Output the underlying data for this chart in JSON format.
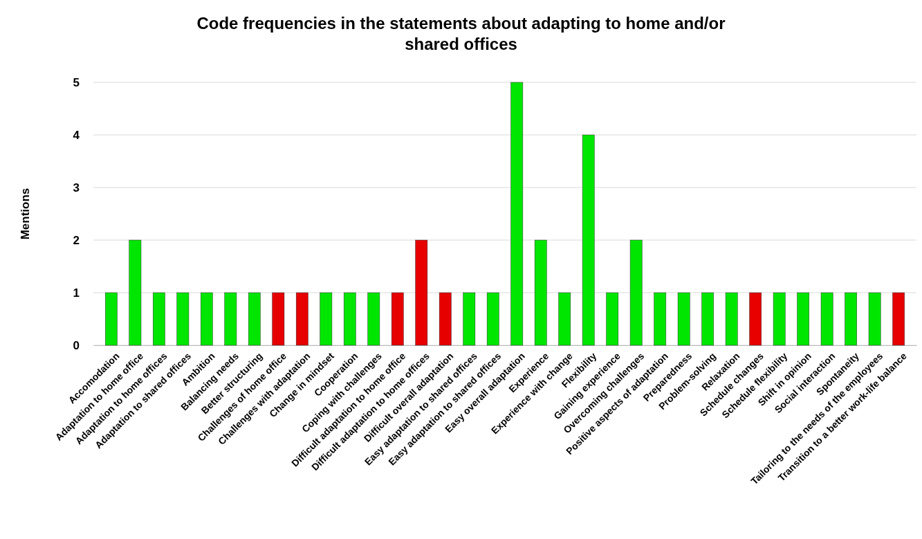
{
  "chart_data": {
    "type": "bar",
    "title": "Code frequencies in the statements about adapting to home and/or shared offices",
    "ylabel": "Mentions",
    "categories": [
      "Accomodation",
      "Adaptation to home office",
      "Adaptation to home offices",
      "Adaptation to shared offices",
      "Ambition",
      "Balancing needs",
      "Better structuring",
      "Challenges of home office",
      "Challenges with adaptation",
      "Change in mindset",
      "Cooperation",
      "Coping with challenges",
      "Difficult adaptation to home office",
      "Difficult adaptation to home offices",
      "Difficult overall adaptation",
      "Easy adaptation to shared offices",
      "Easy adaptation to shared offices",
      "Easy overall adaptation",
      "Experience",
      "Experience with change",
      "Flexibility",
      "Gaining experience",
      "Overcoming challenges",
      "Positive aspects of adaptation",
      "Preparedness",
      "Problem-solving",
      "Relaxation",
      "Schedule changes",
      "Schedule flexibility",
      "Shift in opinion",
      "Social interaction",
      "Spontaneity",
      "Tailoring to the needs of the employees",
      "Transition to a better work-life balance"
    ],
    "values": [
      1,
      2,
      1,
      1,
      1,
      1,
      1,
      1,
      1,
      1,
      1,
      1,
      1,
      2,
      1,
      1,
      1,
      5,
      2,
      1,
      4,
      1,
      2,
      1,
      1,
      1,
      1,
      1,
      1,
      1,
      1,
      1,
      1,
      1
    ],
    "colors": [
      "#00e600",
      "#00e600",
      "#00e600",
      "#00e600",
      "#00e600",
      "#00e600",
      "#00e600",
      "#e60000",
      "#e60000",
      "#00e600",
      "#00e600",
      "#00e600",
      "#e60000",
      "#e60000",
      "#e60000",
      "#00e600",
      "#00e600",
      "#00e600",
      "#00e600",
      "#00e600",
      "#00e600",
      "#00e600",
      "#00e600",
      "#00e600",
      "#00e600",
      "#00e600",
      "#00e600",
      "#e60000",
      "#00e600",
      "#00e600",
      "#00e600",
      "#00e600",
      "#00e600",
      "#e60000"
    ],
    "ylim": [
      0,
      5
    ],
    "yticks": [
      0,
      1,
      2,
      3,
      4,
      5
    ],
    "grid": "y"
  }
}
